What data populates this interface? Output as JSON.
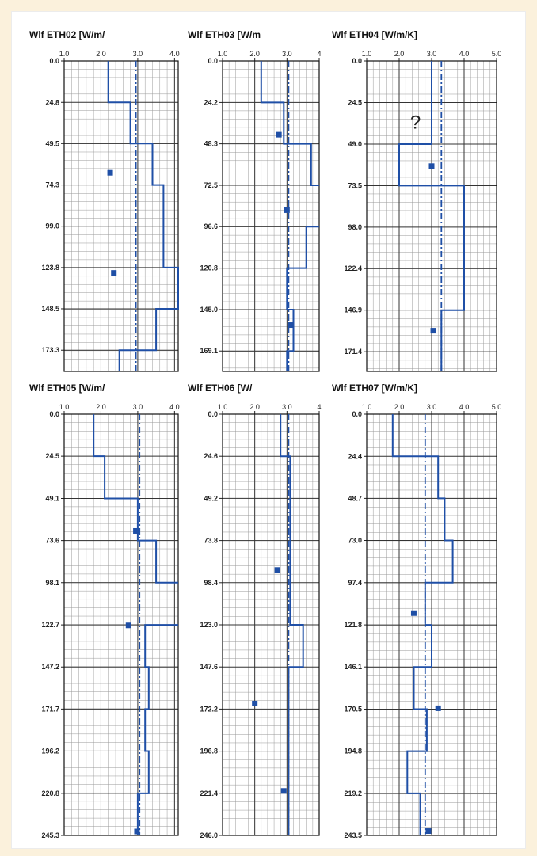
{
  "colors": {
    "line": "#1f4fa6",
    "marker": "#1f4fa6",
    "grid_major": "#333333",
    "grid_minor": "#9a9a9a",
    "background": "#fbf1dc"
  },
  "chart_data": [
    {
      "type": "line",
      "title": "Wlf ETH02 [W/m/",
      "x_ticks": [
        "1.0",
        "2.0",
        "3.0",
        "4.0"
      ],
      "xlim": [
        1.0,
        4.1
      ],
      "y_ticks": [
        "0.0",
        "24.8",
        "49.5",
        "74.3",
        "99.0",
        "123.8",
        "148.5",
        "173.3"
      ],
      "ylim": [
        0,
        186
      ],
      "series": [
        {
          "style": "step",
          "points": [
            [
              2.2,
              0
            ],
            [
              2.2,
              24.8
            ],
            [
              2.8,
              24.8
            ],
            [
              2.8,
              49.5
            ],
            [
              3.4,
              49.5
            ],
            [
              3.4,
              74.3
            ],
            [
              3.7,
              74.3
            ],
            [
              3.7,
              123.8
            ],
            [
              4.1,
              123.8
            ],
            [
              4.1,
              148.5
            ],
            [
              3.5,
              148.5
            ],
            [
              3.5,
              173.3
            ],
            [
              2.5,
              173.3
            ],
            [
              2.5,
              186
            ]
          ]
        },
        {
          "style": "dashdot",
          "points": [
            [
              2.95,
              0
            ],
            [
              2.95,
              186
            ]
          ]
        },
        {
          "style": "markers",
          "points": [
            [
              2.25,
              67
            ],
            [
              2.35,
              127
            ]
          ]
        }
      ]
    },
    {
      "type": "line",
      "title": "Wlf ETH03 [W/m",
      "x_ticks": [
        "1.0",
        "2.0",
        "3.0",
        "4"
      ],
      "xlim": [
        1.0,
        4.0
      ],
      "y_ticks": [
        "0.0",
        "24.2",
        "48.3",
        "72.5",
        "96.6",
        "120.8",
        "145.0",
        "169.1"
      ],
      "ylim": [
        0,
        181
      ],
      "series": [
        {
          "style": "step",
          "points": [
            [
              2.2,
              0
            ],
            [
              2.2,
              24.2
            ],
            [
              2.9,
              24.2
            ],
            [
              2.9,
              48.3
            ],
            [
              3.75,
              48.3
            ],
            [
              3.75,
              72.5
            ],
            [
              4.0,
              72.5
            ]
          ]
        },
        {
          "style": "step",
          "points": [
            [
              4.0,
              96.6
            ],
            [
              3.6,
              96.6
            ],
            [
              3.6,
              120.8
            ],
            [
              3.0,
              120.8
            ],
            [
              3.0,
              145.0
            ],
            [
              3.2,
              145.0
            ],
            [
              3.2,
              169.1
            ],
            [
              3.0,
              169.1
            ],
            [
              3.0,
              181
            ]
          ]
        },
        {
          "style": "dashdot",
          "points": [
            [
              3.05,
              0
            ],
            [
              3.05,
              181
            ]
          ]
        },
        {
          "style": "markers",
          "points": [
            [
              2.75,
              43
            ],
            [
              3.0,
              87
            ],
            [
              3.1,
              154
            ]
          ]
        }
      ]
    },
    {
      "type": "line",
      "title": "Wlf ETH04 [W/m/K]",
      "x_ticks": [
        "1.0",
        "2.0",
        "3.0",
        "4.0",
        "5.0"
      ],
      "xlim": [
        1.0,
        5.0
      ],
      "y_ticks": [
        "0.0",
        "24.5",
        "49.0",
        "73.5",
        "98.0",
        "122.4",
        "146.9",
        "171.4"
      ],
      "ylim": [
        0,
        183
      ],
      "annotations": [
        {
          "text": "?",
          "x": 2.5,
          "y": 40
        }
      ],
      "series": [
        {
          "style": "step",
          "points": [
            [
              3.0,
              0
            ],
            [
              3.0,
              49.0
            ],
            [
              2.0,
              49.0
            ],
            [
              2.0,
              73.5
            ],
            [
              4.0,
              73.5
            ],
            [
              4.0,
              146.9
            ],
            [
              3.3,
              146.9
            ],
            [
              3.3,
              183
            ]
          ]
        },
        {
          "style": "dashdot",
          "points": [
            [
              3.3,
              0
            ],
            [
              3.3,
              183
            ]
          ]
        },
        {
          "style": "markers",
          "points": [
            [
              3.0,
              62
            ],
            [
              3.05,
              159
            ]
          ]
        }
      ]
    },
    {
      "type": "line",
      "title": "Wlf ETH05 [W/m/",
      "x_ticks": [
        "1.0",
        "2.0",
        "3.0",
        "4.0"
      ],
      "xlim": [
        1.0,
        4.1
      ],
      "y_ticks": [
        "0.0",
        "24.5",
        "49.1",
        "73.6",
        "98.1",
        "122.7",
        "147.2",
        "171.7",
        "196.2",
        "220.8",
        "245.3"
      ],
      "ylim": [
        0,
        245.3
      ],
      "series": [
        {
          "style": "step",
          "points": [
            [
              1.8,
              0
            ],
            [
              1.8,
              24.5
            ],
            [
              2.1,
              24.5
            ],
            [
              2.1,
              49.1
            ],
            [
              3.0,
              49.1
            ],
            [
              3.0,
              73.6
            ],
            [
              3.5,
              73.6
            ],
            [
              3.5,
              98.1
            ],
            [
              4.1,
              98.1
            ]
          ]
        },
        {
          "style": "step",
          "points": [
            [
              4.1,
              122.7
            ],
            [
              3.2,
              122.7
            ],
            [
              3.2,
              147.2
            ],
            [
              3.3,
              147.2
            ],
            [
              3.3,
              171.7
            ],
            [
              3.2,
              171.7
            ],
            [
              3.2,
              196.2
            ],
            [
              3.3,
              196.2
            ],
            [
              3.3,
              220.8
            ],
            [
              3.0,
              220.8
            ],
            [
              3.0,
              245.3
            ]
          ]
        },
        {
          "style": "dashdot",
          "points": [
            [
              3.05,
              0
            ],
            [
              3.05,
              245.3
            ]
          ]
        },
        {
          "style": "markers",
          "points": [
            [
              2.95,
              68
            ],
            [
              2.75,
              123
            ],
            [
              2.98,
              243
            ]
          ]
        }
      ]
    },
    {
      "type": "line",
      "title": "Wlf ETH06 [W/",
      "x_ticks": [
        "1.0",
        "2.0",
        "3.0",
        "4"
      ],
      "xlim": [
        1.0,
        4.0
      ],
      "y_ticks": [
        "0.0",
        "24.6",
        "49.2",
        "73.8",
        "98.4",
        "123.0",
        "147.6",
        "172.2",
        "196.8",
        "221.4",
        "246.0"
      ],
      "ylim": [
        0,
        246.0
      ],
      "series": [
        {
          "style": "step",
          "points": [
            [
              2.8,
              0
            ],
            [
              2.8,
              24.6
            ],
            [
              3.1,
              24.6
            ],
            [
              3.1,
              123.0
            ],
            [
              3.5,
              123.0
            ],
            [
              3.5,
              147.6
            ],
            [
              3.05,
              147.6
            ],
            [
              3.05,
              246.0
            ]
          ]
        },
        {
          "style": "dashdot",
          "points": [
            [
              3.05,
              0
            ],
            [
              3.05,
              246.0
            ]
          ]
        },
        {
          "style": "markers",
          "points": [
            [
              2.7,
              91
            ],
            [
              2.0,
              169
            ],
            [
              2.9,
              220
            ]
          ]
        }
      ]
    },
    {
      "type": "line",
      "title": "Wlf ETH07 [W/m/K]",
      "x_ticks": [
        "1.0",
        "2.0",
        "3.0",
        "4.0",
        "5.0"
      ],
      "xlim": [
        1.0,
        5.0
      ],
      "y_ticks": [
        "0.0",
        "24.4",
        "48.7",
        "73.0",
        "97.4",
        "121.8",
        "146.1",
        "170.5",
        "194.8",
        "219.2",
        "243.5"
      ],
      "ylim": [
        0,
        243.5
      ],
      "series": [
        {
          "style": "step",
          "points": [
            [
              1.8,
              0
            ],
            [
              1.8,
              24.4
            ],
            [
              3.2,
              24.4
            ],
            [
              3.2,
              48.7
            ],
            [
              3.4,
              48.7
            ],
            [
              3.4,
              73.0
            ],
            [
              3.65,
              73.0
            ],
            [
              3.65,
              97.4
            ],
            [
              2.8,
              97.4
            ],
            [
              2.8,
              121.8
            ],
            [
              3.0,
              121.8
            ],
            [
              3.0,
              146.1
            ],
            [
              2.45,
              146.1
            ],
            [
              2.45,
              170.5
            ],
            [
              2.85,
              170.5
            ],
            [
              2.85,
              194.8
            ],
            [
              2.25,
              194.8
            ],
            [
              2.25,
              219.2
            ],
            [
              2.65,
              219.2
            ],
            [
              2.65,
              243.5
            ]
          ]
        },
        {
          "style": "dashdot",
          "points": [
            [
              2.8,
              0
            ],
            [
              2.8,
              243.5
            ]
          ]
        },
        {
          "style": "markers",
          "points": [
            [
              2.45,
              115
            ],
            [
              3.2,
              170
            ],
            [
              2.9,
              241
            ]
          ]
        }
      ]
    }
  ]
}
